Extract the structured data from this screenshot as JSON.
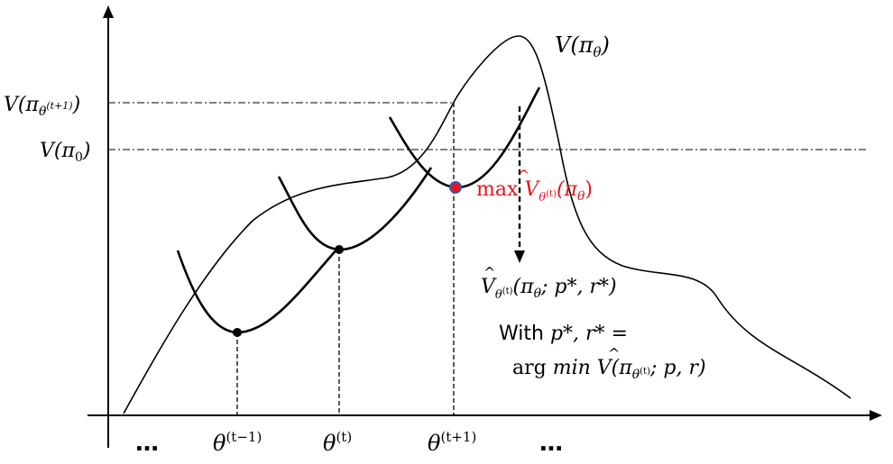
{
  "labels": {
    "curve_label": "V(π",
    "curve_label_sub": "θ",
    "curve_label_close": ")",
    "y_upper_label": "V(π",
    "y_upper_sub": "θ",
    "y_upper_sup": "(t+1)",
    "y_upper_close": ")",
    "y_lower_label": "V(π",
    "y_lower_sub": "0",
    "y_lower_close": ")",
    "max_prefix": "max ",
    "max_v": "V",
    "max_sub": "θ",
    "max_sub_sup": "(t)",
    "max_arg": "(π",
    "max_arg_sub": "θ",
    "max_close": ")",
    "surrogate_v": "V",
    "surrogate_sub": "θ",
    "surrogate_sub_sup": "(t)",
    "surrogate_arg": "(π",
    "surrogate_arg_sub": "θ",
    "surrogate_rest": "; p*, r*)",
    "with_line": "With ",
    "with_vars": "p*, r* =",
    "argmin_arg": "arg ",
    "argmin_min": "min ",
    "argmin_v": "V",
    "argmin_paren": "(π",
    "argmin_sub": "θ",
    "argmin_sub_sup": "(t)",
    "argmin_rest": "; p, r)",
    "ellipsis_left": "…",
    "ellipsis_right": "…",
    "theta": "θ",
    "theta_t_minus_1_sup": "(t−1)",
    "theta_t_sup": "(t)",
    "theta_t_plus_1_sup": "(t+1)"
  },
  "colors": {
    "ink": "#000000",
    "highlight": "#e8141c",
    "point_fill_red": "#e8141c",
    "point_stroke_blue": "#3b5aa8"
  }
}
